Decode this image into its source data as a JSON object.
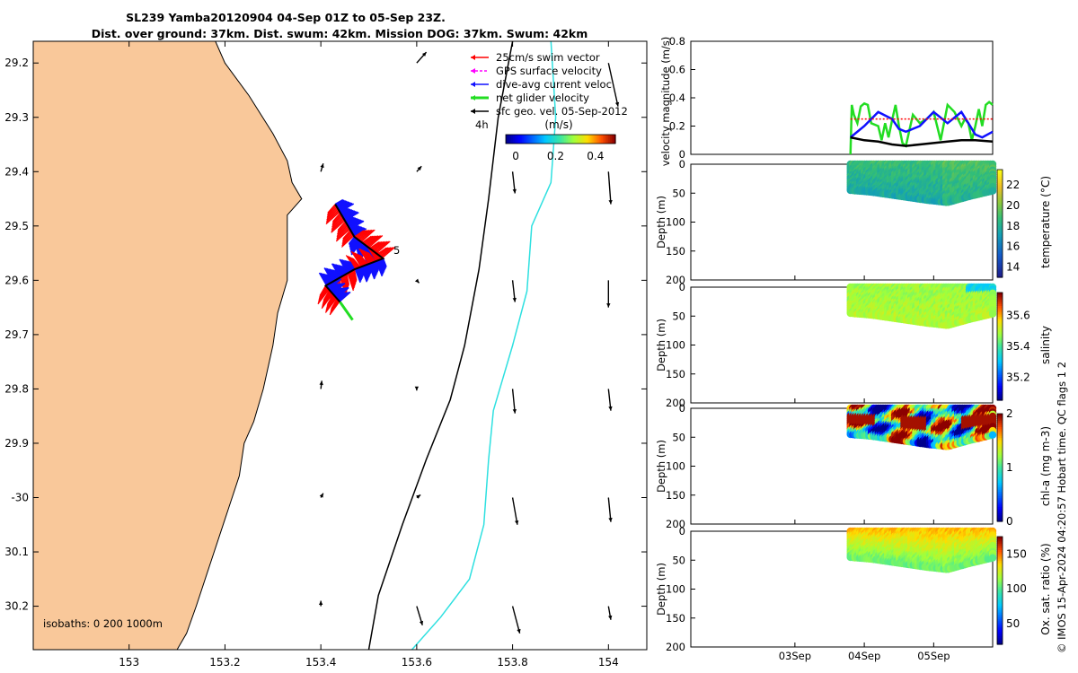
{
  "header": {
    "title_line1": "SL239 Yamba20120904 04-Sep 01Z to 05-Sep 23Z.",
    "title_line2": "Dist. over ground: 37km. Dist. swum: 42km. Mission DOG: 37km. Swum: 42km"
  },
  "side_note": "© IMOS 15-Apr-2024 04:20:57 Hobart time. QC flags 1  2",
  "colors": {
    "land": "#f9c89a",
    "cyan_isobath": "#2ee0e0",
    "red": "#ff0000",
    "blue": "#1010ff",
    "green": "#22dd22",
    "magenta": "#ff00ff"
  },
  "chart_data": [
    {
      "type": "map",
      "name_label": "track map",
      "xlim": [
        152.8,
        154.08
      ],
      "ylim": [
        -30.28,
        -29.16
      ],
      "x_ticks": [
        153,
        153.2,
        153.4,
        153.6,
        153.8,
        154
      ],
      "x_tick_labels": [
        "153",
        "153.2",
        "153.4",
        "153.6",
        "153.8",
        "154"
      ],
      "y_ticks": [
        -29.2,
        -29.3,
        -29.4,
        -29.5,
        -29.6,
        -29.7,
        -29.8,
        -29.9,
        -30,
        -30.1,
        -30.2
      ],
      "y_tick_labels": [
        "29.2",
        "29.3",
        "29.4",
        "29.5",
        "29.6",
        "29.7",
        "29.8",
        "29.9",
        "-30",
        "30.1",
        "30.2"
      ],
      "legend": [
        {
          "label": "25cm/s swim vector",
          "color": "#ff0000"
        },
        {
          "label": "GPS surface velocity",
          "color": "#ff00ff"
        },
        {
          "label": "dive-avg current veloc",
          "color": "#1010ff"
        },
        {
          "label": "net glider velocity",
          "color": "#22dd22"
        },
        {
          "label": "sfc geo. vel. 05-Sep-2012",
          "color": "#000000"
        }
      ],
      "legend_placement": "top-right",
      "time_label": "4h",
      "segment_label": "5",
      "colorbar": {
        "label": "(m/s)",
        "ticks": [
          0,
          0.2,
          0.4
        ],
        "tick_labels": [
          "0",
          "0.2",
          "0.4"
        ],
        "range": [
          -0.05,
          0.5
        ]
      },
      "isobath_label": "isobaths: 0   200  1000m",
      "coastline": [
        [
          152.8,
          -29.16
        ],
        [
          153.18,
          -29.16
        ],
        [
          153.2,
          -29.2
        ],
        [
          153.25,
          -29.26
        ],
        [
          153.3,
          -29.33
        ],
        [
          153.33,
          -29.38
        ],
        [
          153.34,
          -29.42
        ],
        [
          153.36,
          -29.45
        ],
        [
          153.33,
          -29.48
        ],
        [
          153.33,
          -29.53
        ],
        [
          153.33,
          -29.6
        ],
        [
          153.31,
          -29.66
        ],
        [
          153.3,
          -29.72
        ],
        [
          153.28,
          -29.8
        ],
        [
          153.26,
          -29.86
        ],
        [
          153.24,
          -29.9
        ],
        [
          153.23,
          -29.96
        ],
        [
          153.2,
          -30.04
        ],
        [
          153.17,
          -30.12
        ],
        [
          153.14,
          -30.2
        ],
        [
          153.12,
          -30.25
        ],
        [
          153.1,
          -30.28
        ],
        [
          152.8,
          -30.28
        ]
      ],
      "isobath_200m": [
        [
          153.8,
          -29.16
        ],
        [
          153.77,
          -29.3
        ],
        [
          153.75,
          -29.45
        ],
        [
          153.73,
          -29.58
        ],
        [
          153.7,
          -29.72
        ],
        [
          153.67,
          -29.82
        ],
        [
          153.62,
          -29.93
        ],
        [
          153.57,
          -30.05
        ],
        [
          153.52,
          -30.18
        ],
        [
          153.5,
          -30.28
        ]
      ],
      "isobath_1000m": [
        [
          153.88,
          -29.16
        ],
        [
          153.89,
          -29.3
        ],
        [
          153.88,
          -29.42
        ],
        [
          153.84,
          -29.5
        ],
        [
          153.83,
          -29.62
        ],
        [
          153.8,
          -29.72
        ],
        [
          153.76,
          -29.84
        ],
        [
          153.75,
          -29.93
        ],
        [
          153.74,
          -30.05
        ],
        [
          153.71,
          -30.15
        ],
        [
          153.65,
          -30.22
        ],
        [
          153.59,
          -30.28
        ]
      ],
      "glider_track": [
        [
          153.43,
          -29.46
        ],
        [
          153.47,
          -29.52
        ],
        [
          153.53,
          -29.56
        ],
        [
          153.47,
          -29.58
        ],
        [
          153.41,
          -29.61
        ],
        [
          153.44,
          -29.64
        ]
      ],
      "arrows": [
        {
          "lon": 153.6,
          "lat": -29.2,
          "u": 0.02,
          "v": 0.02
        },
        {
          "lon": 154.0,
          "lat": -29.2,
          "u": 0.02,
          "v": -0.08
        },
        {
          "lon": 153.4,
          "lat": -29.4,
          "u": 0.005,
          "v": 0.015
        },
        {
          "lon": 153.6,
          "lat": -29.4,
          "u": 0.01,
          "v": 0.01
        },
        {
          "lon": 153.8,
          "lat": -29.4,
          "u": 0.005,
          "v": -0.04
        },
        {
          "lon": 154.0,
          "lat": -29.4,
          "u": 0.005,
          "v": -0.06
        },
        {
          "lon": 153.6,
          "lat": -29.6,
          "u": 0.005,
          "v": -0.005
        },
        {
          "lon": 153.8,
          "lat": -29.6,
          "u": 0.005,
          "v": -0.04
        },
        {
          "lon": 154.0,
          "lat": -29.6,
          "u": 0.0,
          "v": -0.05
        },
        {
          "lon": 153.4,
          "lat": -29.8,
          "u": 0.002,
          "v": 0.015
        },
        {
          "lon": 153.6,
          "lat": -29.8,
          "u": 0.0,
          "v": -0.003
        },
        {
          "lon": 153.8,
          "lat": -29.8,
          "u": 0.005,
          "v": -0.045
        },
        {
          "lon": 154.0,
          "lat": -29.8,
          "u": 0.005,
          "v": -0.04
        },
        {
          "lon": 153.4,
          "lat": -30.0,
          "u": 0.005,
          "v": 0.008
        },
        {
          "lon": 153.6,
          "lat": -30.0,
          "u": 0.008,
          "v": 0.005
        },
        {
          "lon": 153.8,
          "lat": -30.0,
          "u": 0.01,
          "v": -0.05
        },
        {
          "lon": 154.0,
          "lat": -30.0,
          "u": 0.005,
          "v": -0.045
        },
        {
          "lon": 153.4,
          "lat": -30.2,
          "u": 0.0,
          "v": 0.01
        },
        {
          "lon": 153.6,
          "lat": -30.2,
          "u": 0.012,
          "v": -0.035
        },
        {
          "lon": 153.8,
          "lat": -30.2,
          "u": 0.015,
          "v": -0.05
        },
        {
          "lon": 154.0,
          "lat": -30.2,
          "u": 0.005,
          "v": -0.025
        }
      ]
    },
    {
      "type": "line",
      "ylabel": "velocity magnitude (m/s)",
      "ylim": [
        0,
        0.8
      ],
      "y_ticks": [
        0,
        0.2,
        0.4,
        0.6,
        0.8
      ],
      "y_tick_labels": [
        "0",
        "0.2",
        "0.4",
        "0.6",
        "0.8"
      ],
      "xlim": [
        0,
        4.35
      ],
      "series": [
        {
          "color": "#22dd22",
          "x": [
            2.3,
            2.32,
            2.35,
            2.4,
            2.45,
            2.5,
            2.55,
            2.6,
            2.7,
            2.75,
            2.8,
            2.85,
            2.9,
            2.95,
            3.0,
            3.05,
            3.1,
            3.2,
            3.3,
            3.4,
            3.5,
            3.6,
            3.7,
            3.8,
            3.9,
            3.95,
            4.0,
            4.05,
            4.1,
            4.15,
            4.2,
            4.25,
            4.3,
            4.35
          ],
          "y": [
            0.0,
            0.35,
            0.28,
            0.22,
            0.34,
            0.36,
            0.35,
            0.22,
            0.2,
            0.1,
            0.22,
            0.12,
            0.24,
            0.35,
            0.2,
            0.08,
            0.06,
            0.28,
            0.22,
            0.25,
            0.3,
            0.1,
            0.35,
            0.3,
            0.2,
            0.25,
            0.22,
            0.1,
            0.2,
            0.32,
            0.2,
            0.35,
            0.37,
            0.35
          ]
        },
        {
          "color": "#1010ff",
          "x": [
            2.3,
            2.5,
            2.7,
            2.9,
            3.0,
            3.1,
            3.3,
            3.5,
            3.7,
            3.9,
            4.0,
            4.1,
            4.2,
            4.35
          ],
          "y": [
            0.12,
            0.2,
            0.3,
            0.25,
            0.18,
            0.16,
            0.2,
            0.3,
            0.22,
            0.3,
            0.22,
            0.14,
            0.12,
            0.16
          ]
        },
        {
          "color": "#ff0000",
          "x": [
            2.3,
            4.35
          ],
          "y": [
            0.25,
            0.25
          ]
        },
        {
          "color": "#000000",
          "x": [
            2.3,
            2.5,
            2.7,
            2.9,
            3.1,
            3.3,
            3.5,
            3.7,
            3.9,
            4.1,
            4.35
          ],
          "y": [
            0.12,
            0.1,
            0.09,
            0.07,
            0.06,
            0.07,
            0.08,
            0.09,
            0.1,
            0.1,
            0.09
          ]
        }
      ]
    },
    {
      "type": "heatmap",
      "ylabel": "Depth (m)",
      "colorbar_label": "temperature (°C)",
      "clim": [
        13,
        23.5
      ],
      "colorbar_ticks": [
        14,
        16,
        18,
        20,
        22
      ],
      "colorbar_tick_labels": [
        "14",
        "16",
        "18",
        "20",
        "22"
      ],
      "colormap": "parula",
      "base_value": 18.8,
      "variation": 0.6
    },
    {
      "type": "heatmap",
      "ylabel": "Depth (m)",
      "colorbar_label": "salinity",
      "clim": [
        35.05,
        35.75
      ],
      "colorbar_ticks": [
        35.2,
        35.4,
        35.6
      ],
      "colorbar_tick_labels": [
        "35.2",
        "35.4",
        "35.6"
      ],
      "colormap": "jet",
      "base_value": 35.48,
      "variation": 0.03
    },
    {
      "type": "heatmap",
      "ylabel": "Depth (m)",
      "colorbar_label": "chl-a (mg m-3)",
      "clim": [
        0,
        2
      ],
      "colorbar_ticks": [
        0,
        1,
        2
      ],
      "colorbar_tick_labels": [
        "0",
        "1",
        "2"
      ],
      "colormap": "jet",
      "base_value": 1.0,
      "variation": 0.9
    },
    {
      "type": "heatmap",
      "ylabel": "Depth (m)",
      "colorbar_label": "Ox. sat. ratio (%)",
      "clim": [
        20,
        175
      ],
      "colorbar_ticks": [
        50,
        100,
        150
      ],
      "colorbar_tick_labels": [
        "50",
        "100",
        "150"
      ],
      "colormap": "jet",
      "base_value": 110,
      "variation": 6
    }
  ],
  "profile_axes": {
    "depth_ticks": [
      0,
      50,
      100,
      150,
      200
    ],
    "depth_tick_labels": [
      "0",
      "50",
      "100",
      "150",
      "200"
    ],
    "xlim": [
      0,
      4.35
    ],
    "time_ticks": [
      1.5,
      2.5,
      3.5
    ],
    "time_tick_labels": [
      "03Sep",
      "04Sep",
      "05Sep"
    ],
    "data_xrange": [
      2.3,
      4.35
    ],
    "bottom_profile": [
      [
        2.3,
        45
      ],
      [
        2.6,
        48
      ],
      [
        3.0,
        55
      ],
      [
        3.4,
        62
      ],
      [
        3.7,
        66
      ],
      [
        4.0,
        56
      ],
      [
        4.35,
        46
      ]
    ]
  }
}
